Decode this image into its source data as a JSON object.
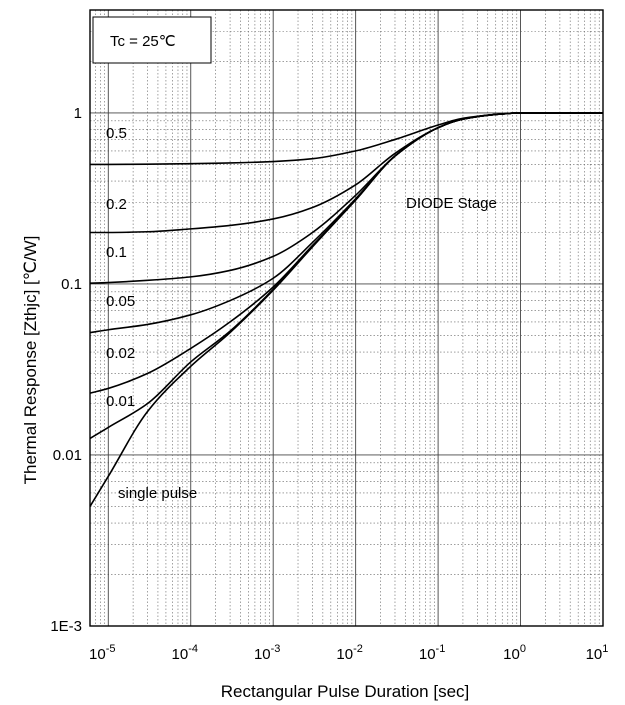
{
  "chart_data": {
    "type": "line",
    "title": "",
    "xlabel": "Rectangular Pulse Duration [sec]",
    "ylabel": "Thermal Response [Zthjc]  [℃/W]",
    "x_scale": "log",
    "y_scale": "log",
    "xlim": [
      6e-06,
      10
    ],
    "ylim": [
      0.001,
      4
    ],
    "grid": true,
    "legend": "none",
    "x_ticks": [
      {
        "base": "10",
        "exp": "-5"
      },
      {
        "base": "10",
        "exp": "-4"
      },
      {
        "base": "10",
        "exp": "-3"
      },
      {
        "base": "10",
        "exp": "-2"
      },
      {
        "base": "10",
        "exp": "-1"
      },
      {
        "base": "10",
        "exp": "0"
      },
      {
        "base": "10",
        "exp": "1"
      }
    ],
    "y_ticks": [
      "1E-3",
      "0.01",
      "0.1",
      "1"
    ],
    "annotations": {
      "condition_box": "Tc = 25℃",
      "stage_label": "DIODE Stage"
    },
    "series": [
      {
        "name": "single pulse",
        "x": [
          6e-06,
          1e-05,
          3e-05,
          0.0001,
          0.0003,
          0.001,
          0.003,
          0.01,
          0.03,
          0.1,
          0.2,
          0.5,
          1,
          10
        ],
        "y": [
          0.005,
          0.0075,
          0.018,
          0.033,
          0.052,
          0.092,
          0.165,
          0.31,
          0.56,
          0.82,
          0.92,
          0.98,
          1.0,
          1.0
        ]
      },
      {
        "name": "0.01",
        "x": [
          6e-06,
          1e-05,
          3e-05,
          0.0001,
          0.0003,
          0.001,
          0.003,
          0.01,
          0.03,
          0.1,
          0.2,
          0.5,
          1,
          10
        ],
        "y": [
          0.0125,
          0.0145,
          0.02,
          0.035,
          0.053,
          0.093,
          0.166,
          0.31,
          0.56,
          0.82,
          0.92,
          0.98,
          1.0,
          1.0
        ]
      },
      {
        "name": "0.02",
        "x": [
          6e-06,
          1e-05,
          3e-05,
          0.0001,
          0.0003,
          0.001,
          0.003,
          0.01,
          0.03,
          0.1,
          0.2,
          0.5,
          1,
          10
        ],
        "y": [
          0.023,
          0.0245,
          0.03,
          0.042,
          0.06,
          0.096,
          0.168,
          0.31,
          0.56,
          0.82,
          0.92,
          0.98,
          1.0,
          1.0
        ]
      },
      {
        "name": "0.05",
        "x": [
          6e-06,
          1e-05,
          3e-05,
          0.0001,
          0.0003,
          0.001,
          0.003,
          0.01,
          0.03,
          0.1,
          0.2,
          0.5,
          1,
          10
        ],
        "y": [
          0.052,
          0.054,
          0.058,
          0.066,
          0.08,
          0.108,
          0.175,
          0.315,
          0.56,
          0.82,
          0.92,
          0.98,
          1.0,
          1.0
        ]
      },
      {
        "name": "0.1",
        "x": [
          6e-06,
          1e-05,
          3e-05,
          0.0001,
          0.0003,
          0.001,
          0.003,
          0.01,
          0.03,
          0.1,
          0.2,
          0.5,
          1,
          10
        ],
        "y": [
          0.101,
          0.102,
          0.105,
          0.11,
          0.12,
          0.145,
          0.2,
          0.33,
          0.56,
          0.82,
          0.92,
          0.98,
          1.0,
          1.0
        ]
      },
      {
        "name": "0.2",
        "x": [
          6e-06,
          1e-05,
          3e-05,
          0.0001,
          0.0003,
          0.001,
          0.003,
          0.01,
          0.03,
          0.1,
          0.2,
          0.5,
          1,
          10
        ],
        "y": [
          0.2,
          0.2,
          0.202,
          0.21,
          0.22,
          0.24,
          0.28,
          0.38,
          0.58,
          0.82,
          0.92,
          0.98,
          1.0,
          1.0
        ]
      },
      {
        "name": "0.5",
        "x": [
          6e-06,
          1e-05,
          3e-05,
          0.0001,
          0.0003,
          0.001,
          0.003,
          0.01,
          0.03,
          0.1,
          0.2,
          0.5,
          1,
          10
        ],
        "y": [
          0.5,
          0.5,
          0.502,
          0.505,
          0.51,
          0.52,
          0.54,
          0.6,
          0.7,
          0.85,
          0.93,
          0.98,
          1.0,
          1.0
        ]
      }
    ]
  }
}
